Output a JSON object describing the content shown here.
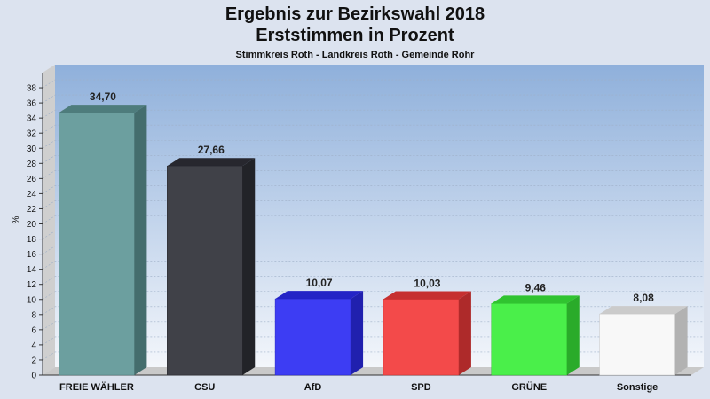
{
  "chart_data": {
    "type": "bar",
    "title": "Ergebnis zur Bezirkswahl 2018",
    "title2": "Erststimmen in Prozent",
    "subtitle": "Stimmkreis Roth - Landkreis Roth - Gemeinde Rohr",
    "ylabel": "%",
    "ylim": [
      0,
      40
    ],
    "y_ticks": [
      "0",
      "2",
      "4",
      "6",
      "8",
      "10",
      "12",
      "14",
      "16",
      "18",
      "20",
      "22",
      "24",
      "26",
      "28",
      "30",
      "32",
      "34",
      "36",
      "38"
    ],
    "categories": [
      "FREIE WÄHLER",
      "CSU",
      "AfD",
      "SPD",
      "GRÜNE",
      "Sonstige"
    ],
    "values": [
      34.7,
      27.66,
      10.07,
      10.03,
      9.46,
      8.08
    ],
    "value_labels": [
      "34,70",
      "27,66",
      "10,07",
      "10,03",
      "9,46",
      "8,08"
    ],
    "colors": [
      "#5f9797",
      "#2f3038",
      "#2c2cf2",
      "#f23a3a",
      "#3aee3a",
      "#f7f7f7"
    ],
    "grid": true,
    "legend": "none"
  }
}
